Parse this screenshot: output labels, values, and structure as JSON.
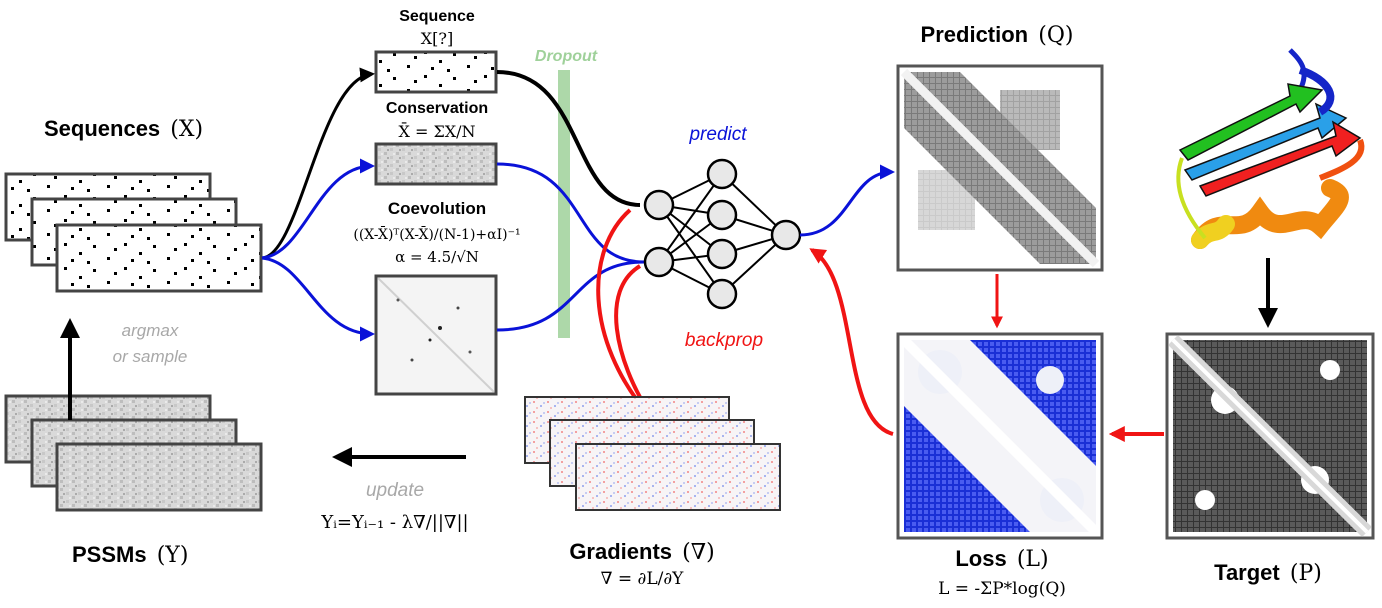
{
  "colors": {
    "black": "#000000",
    "blue": "#0a12d8",
    "red": "#f01414",
    "dropout": "#9fd19a",
    "gray_text": "#a8a8a8"
  },
  "labels": {
    "sequences": "Sequences",
    "sequences_sym": "(X)",
    "sequence": "Sequence",
    "sequence_formula": "X[?]",
    "conservation": "Conservation",
    "conservation_formula": "X̄ = ΣX/N",
    "coevolution": "Coevolution",
    "coevolution_formula": "((X-X̄)ᵀ(X-X̄)/(N-1)+αI)⁻¹",
    "alpha_formula": "α = 4.5/√N",
    "dropout": "Dropout",
    "predict": "predict",
    "backprop": "backprop",
    "prediction": "Prediction",
    "prediction_sym": "(Q)",
    "loss": "Loss",
    "loss_sym": "(L)",
    "loss_formula": "L = -ΣP*log(Q)",
    "target": "Target",
    "target_sym": "(P)",
    "gradients": "Gradients",
    "gradients_sym": "(∇)",
    "gradients_formula": "∇ = ∂L/∂Y",
    "pssms": "PSSMs",
    "pssms_sym": "(Y)",
    "argmax": "argmax",
    "or_sample": "or sample",
    "update": "update",
    "update_formula": "Yᵢ=Yᵢ₋₁ - λ∇/||∇||"
  }
}
